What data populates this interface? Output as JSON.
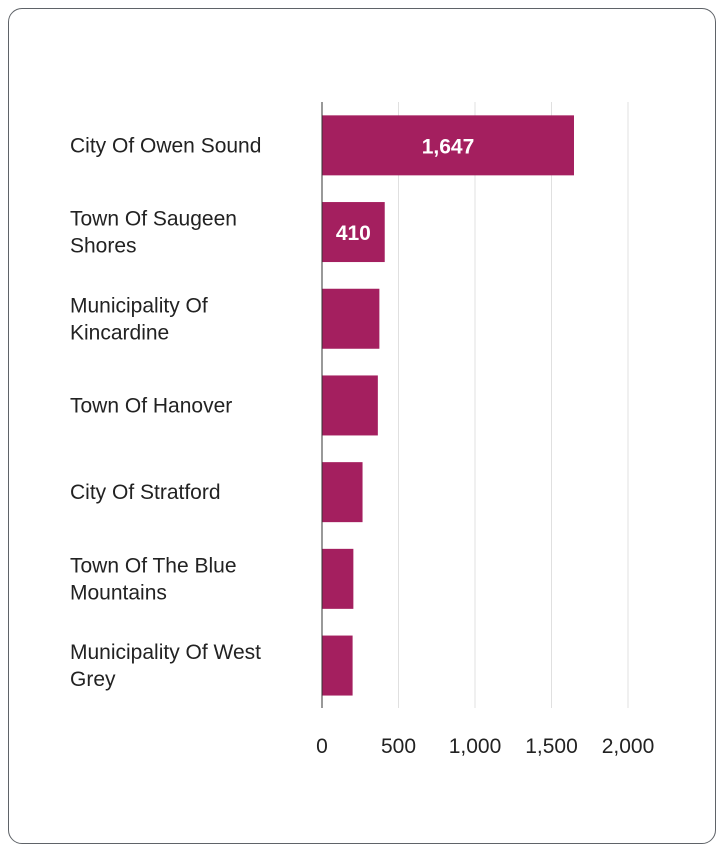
{
  "chart_data": {
    "type": "bar",
    "orientation": "horizontal",
    "categories": [
      [
        "City Of Owen Sound"
      ],
      [
        "Town Of Saugeen",
        "Shores"
      ],
      [
        "Municipality Of",
        "Kincardine"
      ],
      [
        "Town Of Hanover"
      ],
      [
        "City Of Stratford"
      ],
      [
        "Town Of The Blue",
        "Mountains"
      ],
      [
        "Municipality Of West",
        "Grey"
      ]
    ],
    "values": [
      1647,
      410,
      375,
      365,
      265,
      205,
      200
    ],
    "data_labels": [
      "1,647",
      "410",
      "",
      "",
      "",
      "",
      ""
    ],
    "x_ticks": [
      0,
      500,
      1000,
      1500,
      2000
    ],
    "x_tick_labels": [
      "0",
      "500",
      "1,000",
      "1,500",
      "2,000"
    ],
    "xlim": [
      0,
      2000
    ],
    "grid": true,
    "legend": "none",
    "title": "",
    "xlabel": "",
    "ylabel": "",
    "bar_color": "#a41f5f"
  }
}
